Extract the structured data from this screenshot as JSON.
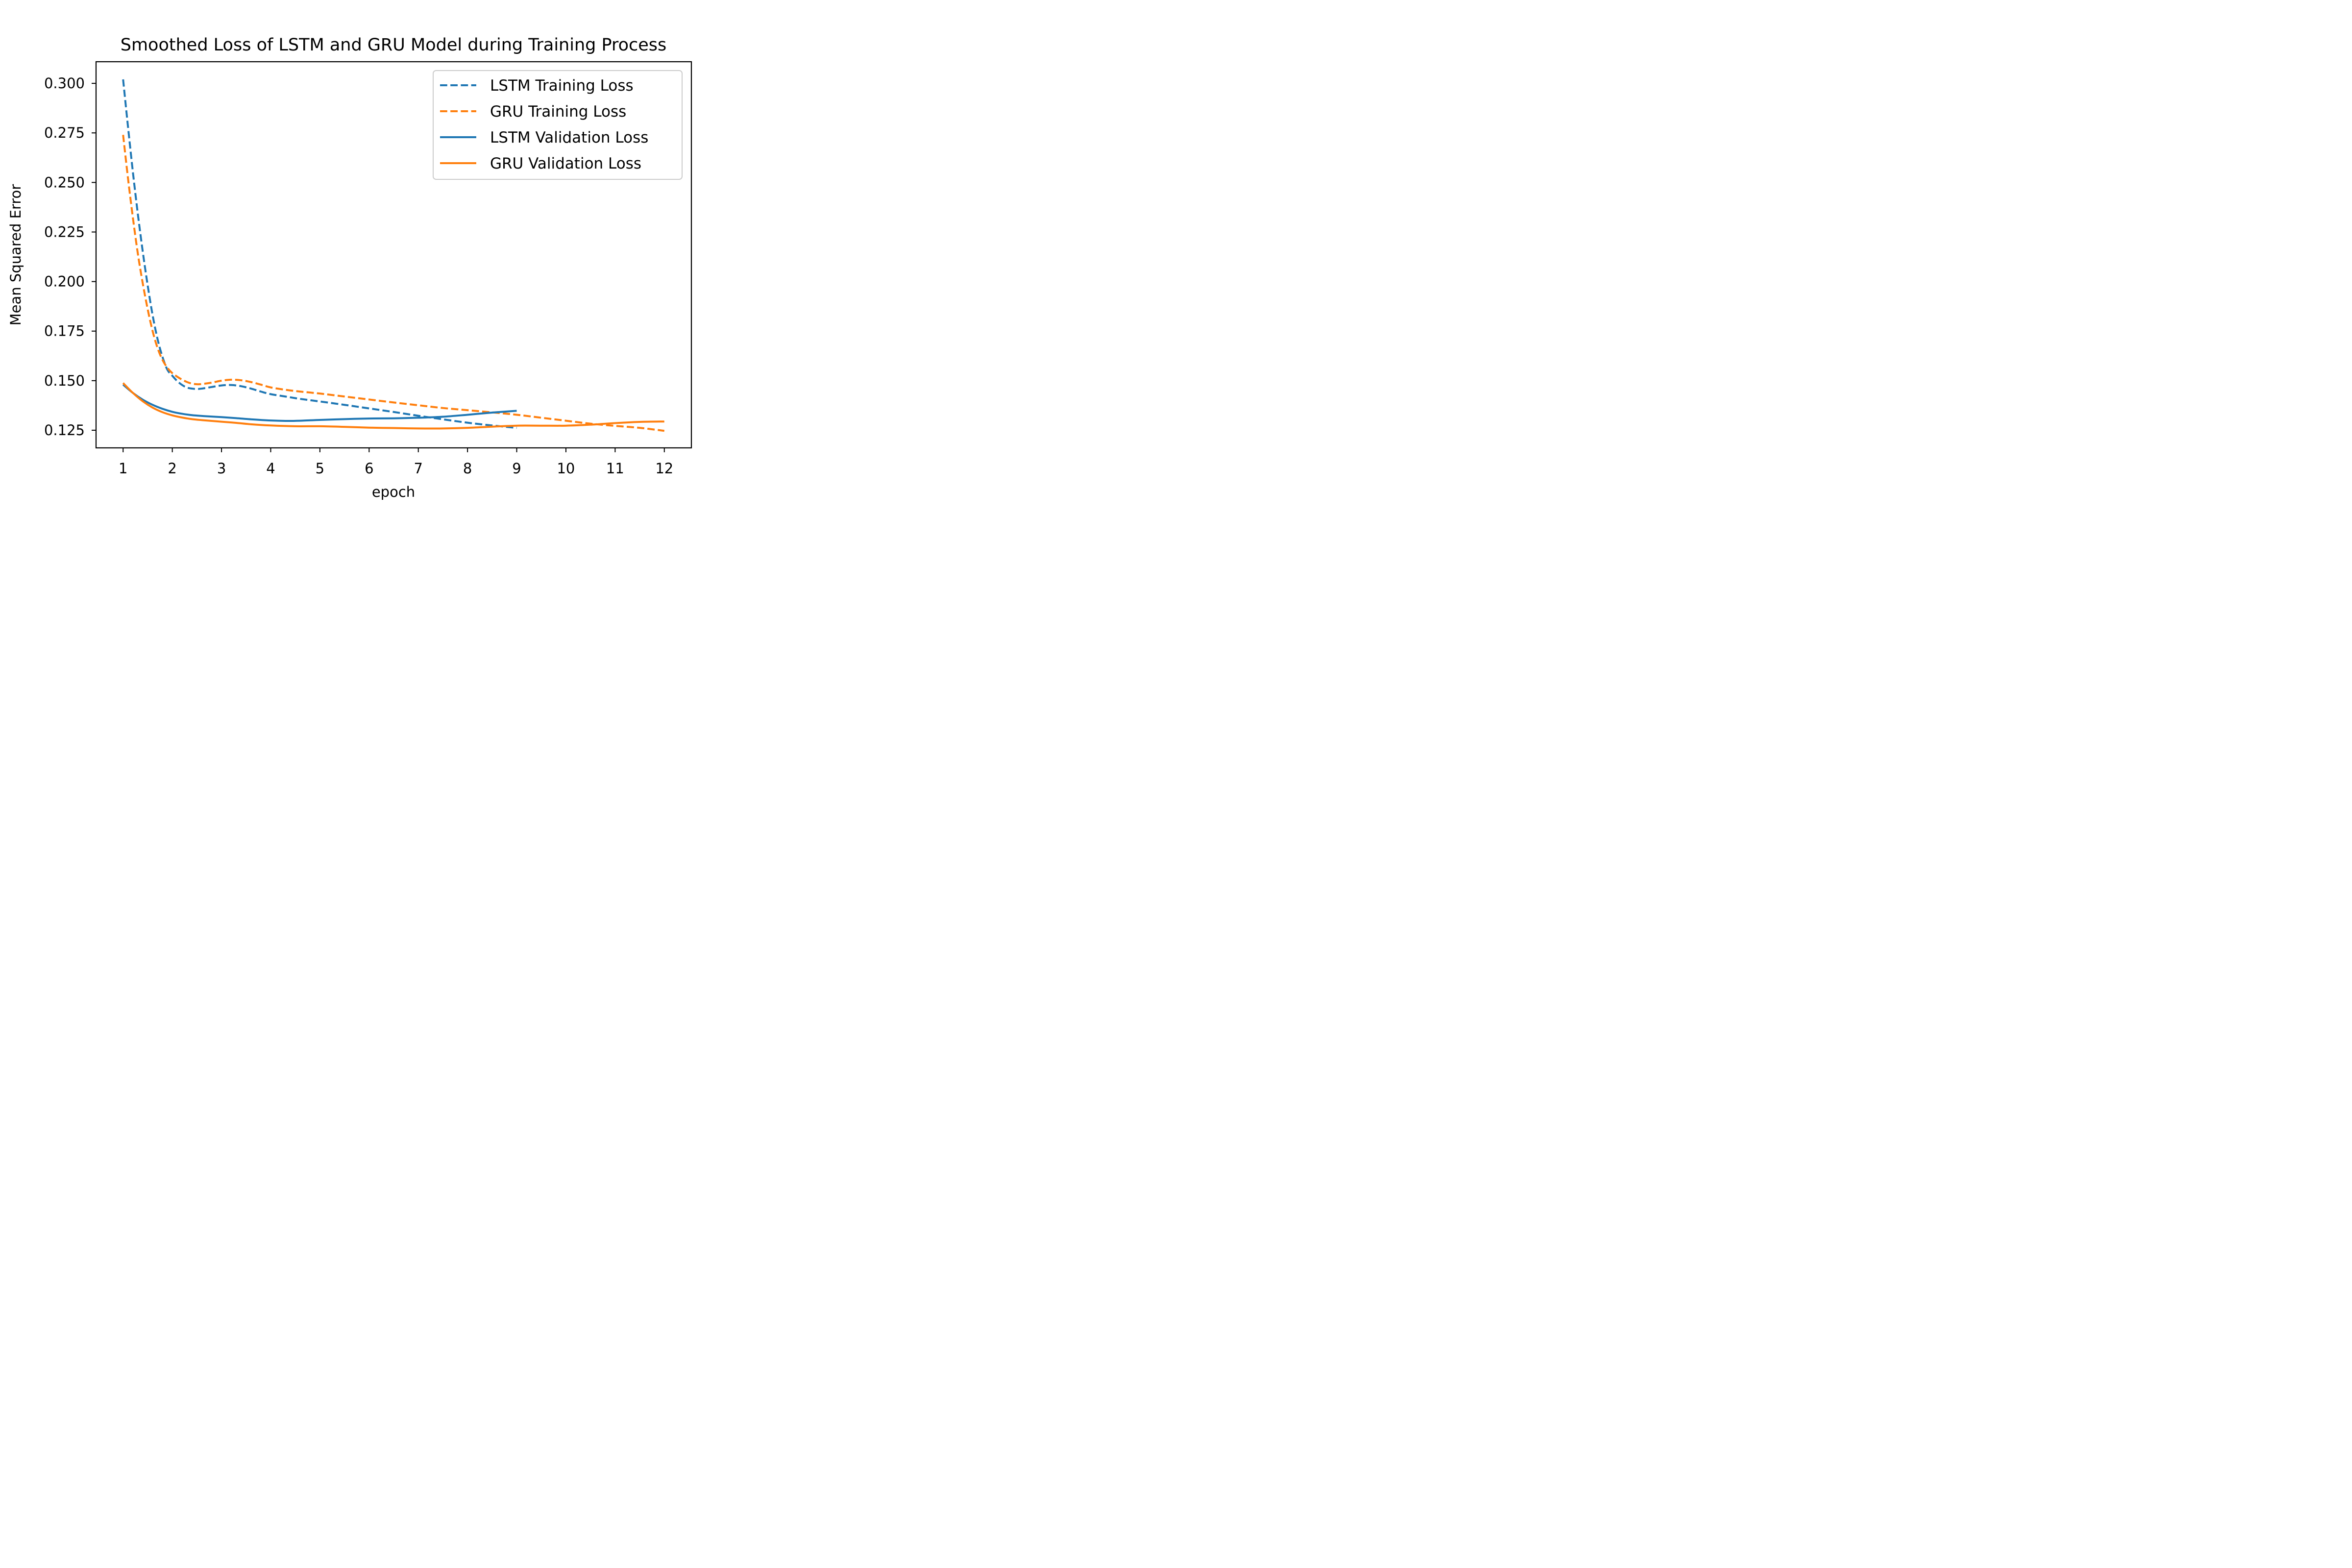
{
  "chart_data": {
    "type": "line",
    "title": "Smoothed Loss of LSTM and GRU Model during Training Process",
    "xlabel": "epoch",
    "ylabel": "Mean Squared Error",
    "xlim": [
      0.45,
      12.55
    ],
    "ylim": [
      0.1161,
      0.3109
    ],
    "xticks": [
      1,
      2,
      3,
      4,
      5,
      6,
      7,
      8,
      9,
      10,
      11,
      12
    ],
    "yticks": [
      0.125,
      0.15,
      0.175,
      0.2,
      0.225,
      0.25,
      0.275,
      0.3
    ],
    "ytick_labels": [
      "0.125",
      "0.150",
      "0.175",
      "0.200",
      "0.225",
      "0.250",
      "0.275",
      "0.300"
    ],
    "grid": false,
    "legend_position": "top-right",
    "series": [
      {
        "name": "LSTM Training Loss",
        "color": "#1f77b4",
        "style": "dashed",
        "x": [
          1,
          1.1,
          1.2,
          1.3,
          1.4,
          1.5,
          1.6,
          1.7,
          1.8,
          1.9,
          2.0,
          2.1,
          2.2,
          2.3,
          2.4,
          2.5,
          2.6,
          2.8,
          3.0,
          3.2,
          3.4,
          3.6,
          3.8,
          4.0,
          4.3,
          4.6,
          5.0,
          5.5,
          6.0,
          6.5,
          7.0,
          7.5,
          8.0,
          8.5,
          9.0
        ],
        "y": [
          0.302,
          0.278,
          0.255,
          0.234,
          0.215,
          0.198,
          0.183,
          0.171,
          0.162,
          0.1555,
          0.1525,
          0.1498,
          0.1478,
          0.1465,
          0.146,
          0.1458,
          0.146,
          0.1468,
          0.1476,
          0.1478,
          0.1472,
          0.146,
          0.1445,
          0.1432,
          0.142,
          0.1408,
          0.1395,
          0.1378,
          0.136,
          0.1342,
          0.1323,
          0.1305,
          0.1288,
          0.1274,
          0.1262
        ]
      },
      {
        "name": "GRU Training Loss",
        "color": "#ff7f0e",
        "style": "dashed",
        "x": [
          1,
          1.1,
          1.2,
          1.3,
          1.4,
          1.5,
          1.6,
          1.7,
          1.8,
          1.9,
          2.0,
          2.1,
          2.2,
          2.3,
          2.4,
          2.5,
          2.6,
          2.8,
          3.0,
          3.2,
          3.4,
          3.6,
          3.8,
          4.0,
          4.3,
          4.6,
          5.0,
          5.5,
          6.0,
          6.5,
          7.0,
          7.5,
          8.0,
          8.5,
          9.0,
          9.5,
          10.0,
          10.5,
          11.0,
          11.5,
          12.0
        ],
        "y": [
          0.274,
          0.252,
          0.232,
          0.214,
          0.199,
          0.186,
          0.175,
          0.1665,
          0.1605,
          0.1565,
          0.1538,
          0.152,
          0.1505,
          0.1493,
          0.1485,
          0.1482,
          0.1483,
          0.149,
          0.15,
          0.1505,
          0.1502,
          0.1493,
          0.148,
          0.1466,
          0.1454,
          0.1445,
          0.1435,
          0.142,
          0.1405,
          0.139,
          0.1376,
          0.1362,
          0.1351,
          0.134,
          0.1328,
          0.1313,
          0.1298,
          0.1283,
          0.1272,
          0.1262,
          0.1247
        ]
      },
      {
        "name": "LSTM Validation Loss",
        "color": "#1f77b4",
        "style": "solid",
        "x": [
          1,
          1.2,
          1.4,
          1.6,
          1.8,
          2.0,
          2.2,
          2.4,
          2.6,
          2.8,
          3.0,
          3.3,
          3.6,
          4.0,
          4.3,
          4.6,
          5.0,
          5.5,
          6.0,
          6.5,
          7.0,
          7.5,
          8.0,
          8.5,
          9.0
        ],
        "y": [
          0.148,
          0.1438,
          0.1404,
          0.1378,
          0.1358,
          0.1343,
          0.1333,
          0.1326,
          0.1322,
          0.1319,
          0.1316,
          0.1311,
          0.1305,
          0.1299,
          0.1297,
          0.1298,
          0.1302,
          0.1306,
          0.1309,
          0.131,
          0.1313,
          0.1318,
          0.1328,
          0.1339,
          0.1348
        ]
      },
      {
        "name": "GRU Validation Loss",
        "color": "#ff7f0e",
        "style": "solid",
        "x": [
          1,
          1.2,
          1.4,
          1.6,
          1.8,
          2.0,
          2.2,
          2.4,
          2.6,
          2.8,
          3.0,
          3.3,
          3.6,
          4.0,
          4.5,
          5.0,
          5.5,
          6.0,
          6.5,
          7.0,
          7.5,
          8.0,
          8.5,
          9.0,
          9.5,
          10.0,
          10.5,
          11.0,
          11.5,
          12.0
        ],
        "y": [
          0.1488,
          0.1438,
          0.1396,
          0.1364,
          0.1341,
          0.1325,
          0.1314,
          0.1306,
          0.1301,
          0.1297,
          0.1293,
          0.1287,
          0.128,
          0.1274,
          0.127,
          0.127,
          0.1267,
          0.1263,
          0.1261,
          0.1259,
          0.1259,
          0.1262,
          0.1268,
          0.1273,
          0.1273,
          0.1273,
          0.1278,
          0.1286,
          0.1292,
          0.1294
        ]
      }
    ]
  }
}
